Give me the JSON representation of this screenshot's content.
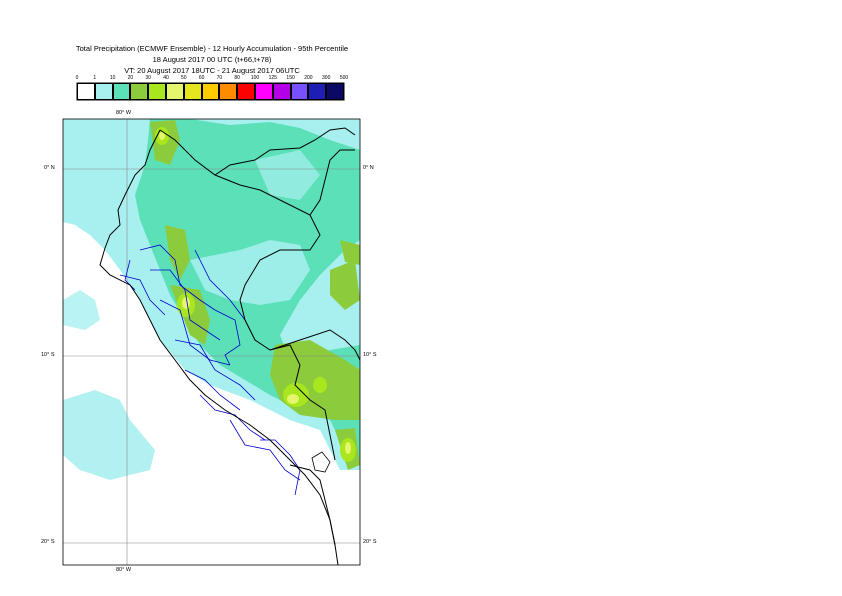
{
  "title": {
    "line1": "Total Precipitation (ECMWF Ensemble) - 12 Hourly Accumulation - 95th Percentile",
    "line2": "18 August 2017 00 UTC (t+66,t+78)",
    "line3": "VT: 20 August 2017 18UTC - 21 August 2017 06UTC"
  },
  "legend": {
    "ticks": [
      "0",
      "1",
      "10",
      "20",
      "30",
      "40",
      "50",
      "60",
      "70",
      "80",
      "100",
      "125",
      "150",
      "200",
      "300",
      "500"
    ],
    "colors": [
      "#ffffff",
      "#a8f0f0",
      "#5ce0b8",
      "#8ccc3c",
      "#a8e61e",
      "#e6f56e",
      "#e6e61e",
      "#ffcc00",
      "#ff8c00",
      "#ff0000",
      "#ff00ff",
      "#b400e6",
      "#7850ff",
      "#1e1eb4",
      "#0a0a64"
    ]
  },
  "map": {
    "lon_labels": {
      "top": "80° W",
      "bottom": "80° W"
    },
    "lat_labels": [
      "0° N",
      "10° S",
      "20° S"
    ],
    "field_colors": {
      "light": "#a8f0f0",
      "mid": "#5ce0b8",
      "green": "#8ccc3c",
      "lime": "#a8e61e",
      "yellow": "#e6f56e"
    },
    "line_colors": {
      "coast": "#000000",
      "admin": "#0000cc",
      "grid": "#888888"
    }
  }
}
